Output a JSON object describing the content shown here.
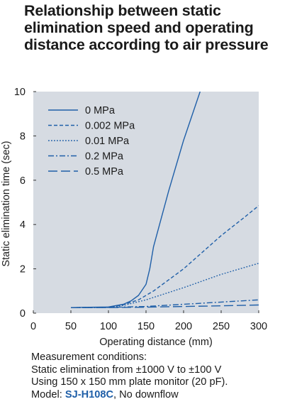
{
  "title_lines": [
    "Relationship between static",
    "elimination speed and operating",
    "distance according to air pressure"
  ],
  "chart_data": {
    "type": "line",
    "title": "Relationship between static elimination speed and operating distance according to air pressure",
    "xlabel": "Operating distance (mm)",
    "ylabel": "Static elimination time (sec)",
    "xlim": [
      0,
      300
    ],
    "ylim": [
      0,
      10
    ],
    "xticks": [
      0,
      50,
      100,
      150,
      200,
      250,
      300
    ],
    "yticks": [
      0,
      2,
      4,
      6,
      8,
      10
    ],
    "grid": false,
    "legend_position": "top-left",
    "series": [
      {
        "name": "0 MPa",
        "style": "solid",
        "x": [
          50,
          100,
          120,
          130,
          140,
          150,
          155,
          160,
          180,
          200,
          222
        ],
        "y": [
          0.25,
          0.28,
          0.4,
          0.55,
          0.8,
          1.3,
          2.0,
          3.0,
          5.5,
          7.8,
          10
        ]
      },
      {
        "name": "0.002 MPa",
        "style": "dashed",
        "x": [
          50,
          100,
          120,
          140,
          150,
          160,
          180,
          200,
          220,
          250,
          280,
          300
        ],
        "y": [
          0.25,
          0.27,
          0.38,
          0.6,
          0.8,
          1.0,
          1.5,
          2.0,
          2.6,
          3.5,
          4.3,
          4.85
        ]
      },
      {
        "name": "0.01 MPa",
        "style": "dotted",
        "x": [
          50,
          100,
          120,
          150,
          200,
          250,
          300
        ],
        "y": [
          0.25,
          0.26,
          0.35,
          0.6,
          1.15,
          1.75,
          2.25
        ]
      },
      {
        "name": "0.2 MPa",
        "style": "dashdot",
        "x": [
          50,
          100,
          150,
          200,
          250,
          300
        ],
        "y": [
          0.25,
          0.26,
          0.3,
          0.4,
          0.5,
          0.6
        ]
      },
      {
        "name": "0.5 MPa",
        "style": "longdash",
        "x": [
          50,
          100,
          150,
          200,
          250,
          300
        ],
        "y": [
          0.25,
          0.25,
          0.27,
          0.3,
          0.33,
          0.37
        ]
      }
    ]
  },
  "conditions": {
    "line1": "Measurement conditions:",
    "line2": "Static elimination from ±1000 V to ±100 V",
    "line3": "Using 150 x 150 mm plate monitor (20 pF).",
    "model_prefix": "Model: ",
    "model_name": "SJ-H108C",
    "model_suffix": ", No downflow"
  },
  "colors": {
    "plot_background": "#d6dbe2",
    "series_line": "#1f5fa8",
    "model_text": "#1f5fa8",
    "text": "#1a1a1a"
  }
}
